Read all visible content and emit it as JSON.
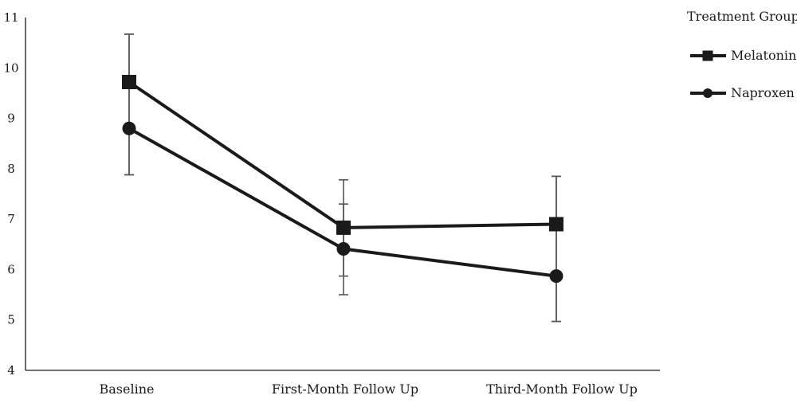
{
  "chart_data": {
    "type": "line",
    "title": "",
    "xlabel": "",
    "ylabel": "",
    "categories": [
      "Baseline",
      "First-Month Follow Up",
      "Third-Month Follow Up"
    ],
    "ylim": [
      4,
      11
    ],
    "yticks": [
      "4",
      "5",
      "6",
      "7",
      "8",
      "9",
      "10",
      "11"
    ],
    "grid": false,
    "legend": {
      "title": "Treatment Group",
      "placement": "top-right"
    },
    "error_bar_shared_per_category": true,
    "series": [
      {
        "name": "Melatonin",
        "marker": "square",
        "values": [
          9.72,
          6.83,
          6.9
        ],
        "error_low": [
          7.88,
          5.87,
          4.97
        ],
        "error_high": [
          10.67,
          7.78,
          7.85
        ]
      },
      {
        "name": "Naproxen",
        "marker": "circle",
        "values": [
          8.8,
          6.41,
          5.87
        ],
        "error_low": [
          7.88,
          5.5,
          4.97
        ],
        "error_high": [
          10.67,
          7.3,
          7.85
        ]
      }
    ],
    "colors": {
      "line": "#1a1a1a",
      "error_bar": "#555555",
      "axis": "#1a1a1a"
    }
  }
}
